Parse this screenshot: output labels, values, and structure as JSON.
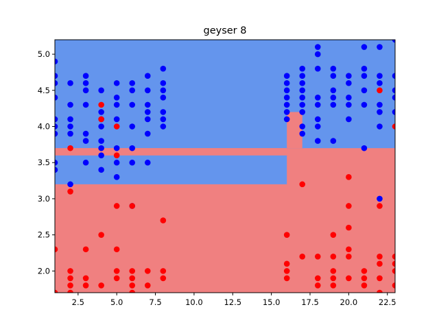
{
  "chart_data": {
    "type": "scatter",
    "title": "geyser 8",
    "xlabel": "",
    "ylabel": "",
    "xlim": [
      1.0,
      23.0
    ],
    "ylim": [
      1.7,
      5.2
    ],
    "xticks": [
      2.5,
      5.0,
      7.5,
      10.0,
      12.5,
      15.0,
      17.5,
      20.0,
      22.5
    ],
    "xtick_labels": [
      "2.5",
      "5.0",
      "7.5",
      "10.0",
      "12.5",
      "15.0",
      "17.5",
      "20.0",
      "22.5"
    ],
    "yticks": [
      2.0,
      2.5,
      3.0,
      3.5,
      4.0,
      4.5,
      5.0
    ],
    "ytick_labels": [
      "2.0",
      "2.5",
      "3.0",
      "3.5",
      "4.0",
      "4.5",
      "5.0"
    ],
    "grid": false,
    "colors": {
      "region_blue": "#6495ed",
      "region_red": "#f08080",
      "point_blue": "#0000ff",
      "point_red": "#ff0000"
    },
    "decision_regions": {
      "background": "red",
      "blue_rects": [
        {
          "x": [
            1.0,
            23.0
          ],
          "y": [
            3.7,
            5.2
          ]
        },
        {
          "x": [
            1.0,
            16.0
          ],
          "y": [
            3.2,
            3.6
          ]
        },
        {
          "x": [
            16.0,
            16.1
          ],
          "y": [
            3.7,
            4.2
          ]
        },
        {
          "x": [
            16.9,
            17.0
          ],
          "y": [
            3.7,
            4.2
          ]
        },
        {
          "x": [
            17.0,
            17.1
          ],
          "y": [
            3.7,
            3.8
          ]
        }
      ],
      "red_rects": [
        {
          "x": [
            16.0,
            17.0
          ],
          "y": [
            3.7,
            4.2
          ]
        },
        {
          "x": [
            1.0,
            16.0
          ],
          "y": [
            3.6,
            3.7
          ]
        }
      ]
    },
    "series": [
      {
        "class": "blue",
        "points": [
          [
            1,
            4.9
          ],
          [
            1,
            4.7
          ],
          [
            1,
            4.6
          ],
          [
            1,
            4.4
          ],
          [
            1,
            4.1
          ],
          [
            1,
            4.0
          ],
          [
            1,
            3.9
          ],
          [
            1,
            3.5
          ],
          [
            1,
            3.4
          ],
          [
            2,
            4.6
          ],
          [
            2,
            4.3
          ],
          [
            2,
            4.1
          ],
          [
            2,
            4.0
          ],
          [
            2,
            3.9
          ],
          [
            2,
            3.2
          ],
          [
            3,
            4.7
          ],
          [
            3,
            4.6
          ],
          [
            3,
            4.5
          ],
          [
            3,
            4.3
          ],
          [
            3,
            3.9
          ],
          [
            3,
            3.8
          ],
          [
            3,
            3.5
          ],
          [
            4,
            4.5
          ],
          [
            4,
            4.2
          ],
          [
            4,
            4.1
          ],
          [
            4,
            4.0
          ],
          [
            4,
            3.8
          ],
          [
            4,
            3.7
          ],
          [
            4,
            3.6
          ],
          [
            4,
            3.4
          ],
          [
            5,
            4.6
          ],
          [
            5,
            4.4
          ],
          [
            5,
            4.3
          ],
          [
            5,
            4.1
          ],
          [
            5,
            3.7
          ],
          [
            5,
            3.5
          ],
          [
            5,
            3.3
          ],
          [
            6,
            4.6
          ],
          [
            6,
            4.5
          ],
          [
            6,
            4.3
          ],
          [
            6,
            4.0
          ],
          [
            6,
            3.7
          ],
          [
            6,
            3.5
          ],
          [
            6,
            2.9
          ],
          [
            7,
            4.7
          ],
          [
            7,
            4.5
          ],
          [
            7,
            4.3
          ],
          [
            7,
            4.2
          ],
          [
            7,
            4.1
          ],
          [
            7,
            3.9
          ],
          [
            7,
            3.5
          ],
          [
            8,
            4.8
          ],
          [
            8,
            4.6
          ],
          [
            8,
            4.5
          ],
          [
            8,
            4.4
          ],
          [
            8,
            4.2
          ],
          [
            8,
            4.1
          ],
          [
            8,
            4.0
          ],
          [
            16,
            4.7
          ],
          [
            16,
            4.6
          ],
          [
            16,
            4.5
          ],
          [
            16,
            4.4
          ],
          [
            16,
            4.3
          ],
          [
            16,
            4.2
          ],
          [
            16,
            4.1
          ],
          [
            17,
            4.8
          ],
          [
            17,
            4.7
          ],
          [
            17,
            4.6
          ],
          [
            17,
            4.5
          ],
          [
            17,
            4.4
          ],
          [
            17,
            4.3
          ],
          [
            17,
            4.2
          ],
          [
            17,
            4.0
          ],
          [
            17,
            3.9
          ],
          [
            18,
            5.1
          ],
          [
            18,
            5.0
          ],
          [
            18,
            4.8
          ],
          [
            18,
            4.4
          ],
          [
            18,
            4.3
          ],
          [
            18,
            4.1
          ],
          [
            18,
            4.0
          ],
          [
            18,
            3.8
          ],
          [
            19,
            4.8
          ],
          [
            19,
            4.7
          ],
          [
            19,
            4.5
          ],
          [
            19,
            4.4
          ],
          [
            19,
            4.3
          ],
          [
            19,
            3.8
          ],
          [
            20,
            4.7
          ],
          [
            20,
            4.6
          ],
          [
            20,
            4.4
          ],
          [
            20,
            4.3
          ],
          [
            20,
            4.1
          ],
          [
            21,
            5.1
          ],
          [
            21,
            4.8
          ],
          [
            21,
            4.7
          ],
          [
            21,
            4.5
          ],
          [
            21,
            4.3
          ],
          [
            21,
            3.7
          ],
          [
            22,
            5.1
          ],
          [
            22,
            4.7
          ],
          [
            22,
            4.6
          ],
          [
            22,
            4.3
          ],
          [
            22,
            4.2
          ],
          [
            22,
            4.0
          ],
          [
            22,
            3.0
          ],
          [
            23,
            5.2
          ],
          [
            23,
            4.7
          ],
          [
            23,
            4.5
          ],
          [
            23,
            4.4
          ],
          [
            23,
            4.2
          ]
        ]
      },
      {
        "class": "red",
        "points": [
          [
            1,
            2.3
          ],
          [
            1,
            1.7
          ],
          [
            2,
            3.7
          ],
          [
            2,
            3.1
          ],
          [
            2,
            2.0
          ],
          [
            2,
            1.9
          ],
          [
            2,
            1.8
          ],
          [
            2,
            1.7
          ],
          [
            3,
            2.3
          ],
          [
            3,
            1.9
          ],
          [
            3,
            1.8
          ],
          [
            4,
            4.3
          ],
          [
            4,
            4.1
          ],
          [
            4,
            2.5
          ],
          [
            4,
            1.8
          ],
          [
            5,
            4.0
          ],
          [
            5,
            3.6
          ],
          [
            5,
            2.9
          ],
          [
            5,
            2.3
          ],
          [
            5,
            2.0
          ],
          [
            5,
            1.9
          ],
          [
            6,
            2.9
          ],
          [
            6,
            2.0
          ],
          [
            6,
            1.9
          ],
          [
            6,
            1.8
          ],
          [
            6,
            1.7
          ],
          [
            7,
            2.0
          ],
          [
            7,
            1.8
          ],
          [
            8,
            2.7
          ],
          [
            8,
            2.0
          ],
          [
            8,
            1.9
          ],
          [
            16,
            2.5
          ],
          [
            16,
            2.1
          ],
          [
            16,
            2.0
          ],
          [
            16,
            1.9
          ],
          [
            17,
            3.2
          ],
          [
            17,
            2.2
          ],
          [
            18,
            2.2
          ],
          [
            18,
            1.9
          ],
          [
            18,
            1.8
          ],
          [
            19,
            2.5
          ],
          [
            19,
            2.2
          ],
          [
            19,
            2.0
          ],
          [
            19,
            1.9
          ],
          [
            19,
            1.8
          ],
          [
            20,
            3.3
          ],
          [
            20,
            2.9
          ],
          [
            20,
            2.6
          ],
          [
            20,
            2.3
          ],
          [
            20,
            2.2
          ],
          [
            20,
            1.9
          ],
          [
            21,
            2.0
          ],
          [
            21,
            1.9
          ],
          [
            21,
            1.8
          ],
          [
            22,
            4.5
          ],
          [
            22,
            2.9
          ],
          [
            22,
            2.2
          ],
          [
            22,
            2.1
          ],
          [
            22,
            1.9
          ],
          [
            22,
            1.7
          ],
          [
            23,
            4.0
          ],
          [
            23,
            2.2
          ],
          [
            23,
            2.1
          ],
          [
            23,
            2.0
          ],
          [
            23,
            1.8
          ]
        ]
      }
    ]
  }
}
